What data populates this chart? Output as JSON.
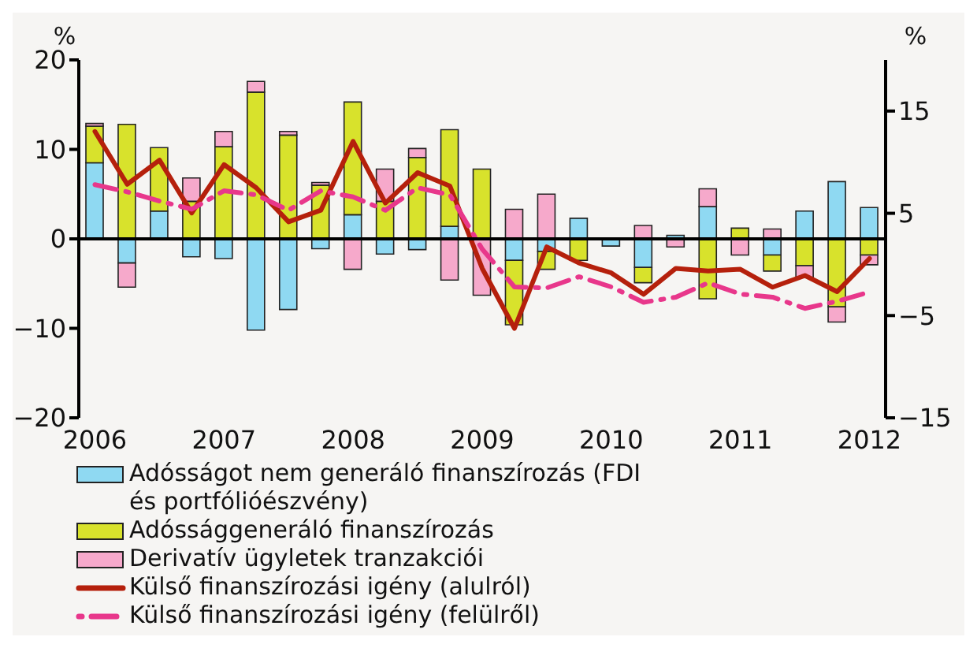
{
  "chart_data": {
    "type": "bar",
    "stacked": true,
    "ylabel": "%",
    "y2label": "%",
    "categories": [
      "2006",
      null,
      null,
      null,
      "2007",
      null,
      null,
      null,
      "2008",
      null,
      null,
      null,
      "2009",
      null,
      null,
      null,
      "2010",
      null,
      null,
      null,
      "2011",
      null,
      null,
      null,
      "2012"
    ],
    "series": [
      {
        "name": "Adósságot nem generáló finanszírozás (FDI és portfólióészvény)",
        "color": "#8fd9f2",
        "values": [
          8.5,
          -2.7,
          3.1,
          -2.0,
          -2.2,
          -10.2,
          -7.9,
          -1.1,
          2.7,
          -1.7,
          -1.2,
          1.4,
          null,
          -2.4,
          -1.4,
          2.3,
          -0.8,
          -3.2,
          0.4,
          3.6,
          null,
          -1.8,
          3.1,
          6.4,
          3.5
        ]
      },
      {
        "name": "Adóssággeneráló finanszírozás",
        "color": "#d8e22c",
        "values": [
          4.1,
          12.8,
          7.1,
          4.2,
          10.3,
          16.4,
          11.6,
          6.0,
          12.6,
          4.2,
          9.1,
          10.8,
          7.8,
          -7.2,
          -2.0,
          -2.4,
          null,
          -1.7,
          null,
          -6.7,
          1.2,
          -1.8,
          -3.0,
          -7.6,
          -1.8
        ]
      },
      {
        "name": "Derivatív ügyletek tranzakciói",
        "color": "#f6a9cb",
        "values": [
          0.3,
          -2.7,
          null,
          2.6,
          1.7,
          1.2,
          0.4,
          0.3,
          -3.4,
          3.6,
          1.0,
          -4.6,
          -6.3,
          3.3,
          5.0,
          null,
          null,
          1.5,
          -0.9,
          2.0,
          -1.8,
          1.1,
          -1.3,
          -1.7,
          -1.1
        ]
      },
      {
        "name": "Külső finanszírozási igény (alulról)",
        "type": "line",
        "color": "#b5200c",
        "line_style": "solid",
        "values": [
          12.0,
          6.1,
          8.8,
          2.9,
          8.3,
          5.7,
          1.9,
          3.2,
          10.9,
          4.0,
          7.4,
          5.9,
          -3.3,
          -10.0,
          -0.9,
          -2.7,
          -3.8,
          -6.2,
          -3.3,
          -3.6,
          -3.4,
          -5.4,
          -4.1,
          -5.9,
          -2.2
        ]
      },
      {
        "name": "Külső finanszírozási igény (felülről)",
        "type": "line",
        "axis": "y2",
        "color": "#e8378b",
        "line_style": "dashed",
        "values": [
          7.8,
          7.1,
          6.2,
          5.4,
          7.2,
          6.8,
          5.3,
          7.2,
          6.6,
          5.3,
          7.5,
          6.8,
          1.5,
          -2.2,
          -2.3,
          -1.2,
          -2.2,
          -3.7,
          -3.2,
          -1.8,
          -2.9,
          -3.2,
          -4.3,
          -3.6,
          -2.7
        ]
      }
    ],
    "ylim": [
      -20,
      20
    ],
    "yticks": [
      -20,
      -10,
      0,
      10,
      20
    ],
    "y2lim": [
      -15,
      20
    ],
    "y2ticks": [
      -15,
      -5,
      5,
      15
    ],
    "ref_lines": [
      {
        "axis": "y",
        "value": 0,
        "color": "#000000"
      }
    ],
    "grid": false,
    "legend": "bottom",
    "marker": "none"
  }
}
